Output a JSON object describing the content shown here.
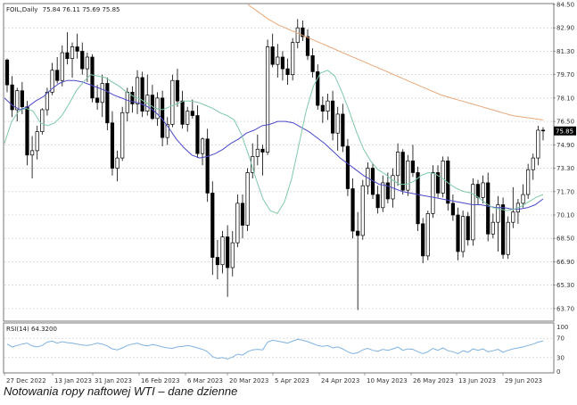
{
  "header": {
    "symbol": "FOIL,Daily",
    "ohlc": "75.84 76.11 75.69 75.85"
  },
  "caption": "Notowania ropy naftowej WTI – dane dzienne",
  "rsi_header": "RSI(14) 64.3200",
  "colors": {
    "candle": "#000000",
    "ma_fast": "#7fc9a8",
    "ma_mid": "#4a4ac8",
    "ma_slow": "#e8a878",
    "rsi": "#7fb3e0",
    "price_tag": "#000000"
  },
  "chart_data": [
    {
      "type": "candlestick",
      "symbol": "FOIL",
      "timeframe": "Daily",
      "last_price": 75.85,
      "price_tag": "75.85",
      "ylim": [
        62.9,
        84.5
      ],
      "y_ticks": [
        "84.50",
        "82.90",
        "81.30",
        "79.70",
        "78.10",
        "76.50",
        "74.90",
        "73.30",
        "71.70",
        "70.10",
        "68.50",
        "66.90",
        "65.30",
        "63.70"
      ],
      "x_ticks": [
        "27 Dec 2022",
        "13 Jan 2023",
        "31 Jan 2023",
        "16 Feb 2023",
        "6 Mar 2023",
        "20 Mar 2023",
        "5 Apr 2023",
        "24 Apr 2023",
        "10 May 2023",
        "26 May 2023",
        "13 Jun 2023",
        "29 Jun 2023"
      ],
      "grid": true,
      "candles": [
        [
          80.7,
          80.8,
          78.5,
          79.0
        ],
        [
          79.0,
          79.6,
          76.8,
          77.3
        ],
        [
          77.3,
          78.8,
          76.5,
          78.6
        ],
        [
          78.6,
          79.2,
          77.0,
          77.5
        ],
        [
          77.5,
          77.9,
          73.5,
          74.2
        ],
        [
          74.2,
          75.5,
          72.6,
          74.5
        ],
        [
          74.5,
          76.2,
          73.9,
          75.8
        ],
        [
          75.8,
          77.4,
          75.6,
          77.3
        ],
        [
          77.3,
          78.8,
          76.9,
          78.5
        ],
        [
          78.5,
          80.5,
          78.3,
          80.0
        ],
        [
          80.0,
          80.9,
          79.1,
          79.3
        ],
        [
          79.3,
          81.7,
          78.9,
          81.2
        ],
        [
          81.2,
          82.6,
          80.4,
          80.8
        ],
        [
          80.8,
          81.9,
          79.5,
          81.6
        ],
        [
          81.6,
          82.5,
          80.8,
          81.3
        ],
        [
          81.3,
          81.9,
          79.7,
          80.1
        ],
        [
          80.1,
          81.2,
          79.2,
          80.9
        ],
        [
          80.9,
          81.1,
          77.8,
          78.1
        ],
        [
          78.1,
          79.0,
          77.3,
          77.8
        ],
        [
          77.8,
          79.7,
          76.8,
          79.1
        ],
        [
          79.1,
          79.5,
          75.9,
          76.4
        ],
        [
          76.4,
          77.2,
          72.8,
          73.3
        ],
        [
          73.3,
          74.5,
          72.4,
          74.0
        ],
        [
          74.0,
          77.5,
          73.8,
          77.1
        ],
        [
          77.1,
          78.8,
          76.5,
          78.5
        ],
        [
          78.5,
          78.9,
          77.1,
          77.7
        ],
        [
          77.7,
          80.0,
          77.0,
          79.5
        ],
        [
          79.5,
          79.9,
          76.8,
          77.2
        ],
        [
          77.2,
          79.7,
          76.9,
          78.3
        ],
        [
          78.3,
          79.0,
          76.6,
          76.7
        ],
        [
          76.7,
          78.5,
          76.2,
          78.1
        ],
        [
          78.1,
          78.6,
          74.8,
          75.4
        ],
        [
          75.4,
          76.8,
          74.9,
          76.3
        ],
        [
          76.3,
          79.7,
          76.1,
          79.3
        ],
        [
          79.3,
          80.1,
          77.5,
          77.9
        ],
        [
          77.9,
          78.6,
          76.0,
          76.3
        ],
        [
          76.3,
          77.5,
          75.8,
          77.2
        ],
        [
          77.2,
          78.0,
          76.7,
          76.9
        ],
        [
          76.9,
          77.6,
          74.0,
          74.3
        ],
        [
          74.3,
          75.4,
          73.5,
          75.3
        ],
        [
          75.3,
          76.0,
          71.0,
          71.6
        ],
        [
          71.6,
          72.4,
          66.0,
          67.2
        ],
        [
          67.2,
          68.4,
          65.7,
          66.7
        ],
        [
          66.7,
          69.0,
          66.1,
          68.6
        ],
        [
          68.6,
          69.4,
          64.5,
          66.5
        ],
        [
          66.5,
          69.0,
          65.9,
          68.2
        ],
        [
          68.2,
          71.5,
          67.9,
          70.9
        ],
        [
          70.9,
          71.5,
          68.5,
          69.4
        ],
        [
          69.4,
          73.3,
          69.0,
          73.0
        ],
        [
          73.0,
          75.0,
          72.6,
          74.1
        ],
        [
          74.1,
          75.6,
          73.5,
          74.6
        ],
        [
          74.6,
          74.9,
          72.8,
          74.4
        ],
        [
          74.4,
          82.1,
          74.2,
          81.6
        ],
        [
          81.6,
          82.5,
          80.2,
          80.4
        ],
        [
          80.4,
          81.8,
          79.5,
          80.9
        ],
        [
          80.9,
          81.3,
          79.3,
          80.1
        ],
        [
          80.1,
          80.8,
          79.0,
          79.7
        ],
        [
          79.7,
          82.2,
          79.3,
          81.9
        ],
        [
          81.9,
          83.5,
          81.5,
          82.9
        ],
        [
          82.9,
          83.4,
          82.0,
          82.3
        ],
        [
          82.3,
          82.8,
          80.7,
          81.0
        ],
        [
          81.0,
          81.5,
          79.5,
          79.9
        ],
        [
          79.9,
          80.4,
          77.3,
          77.6
        ],
        [
          77.6,
          78.2,
          76.4,
          77.2
        ],
        [
          77.2,
          78.4,
          76.6,
          77.9
        ],
        [
          77.9,
          78.6,
          75.2,
          75.7
        ],
        [
          75.7,
          77.5,
          74.5,
          77.0
        ],
        [
          77.0,
          77.7,
          74.4,
          74.8
        ],
        [
          74.8,
          75.3,
          71.4,
          71.9
        ],
        [
          71.9,
          72.6,
          68.5,
          69.0
        ],
        [
          69.0,
          70.3,
          63.6,
          68.7
        ],
        [
          68.7,
          72.5,
          68.4,
          72.1
        ],
        [
          72.1,
          73.7,
          71.5,
          73.3
        ],
        [
          73.3,
          73.6,
          71.2,
          71.5
        ],
        [
          71.5,
          72.1,
          70.2,
          70.6
        ],
        [
          70.6,
          72.8,
          70.3,
          72.3
        ],
        [
          72.3,
          73.0,
          70.9,
          71.2
        ],
        [
          71.2,
          73.3,
          70.6,
          72.8
        ],
        [
          72.8,
          75.0,
          72.1,
          74.4
        ],
        [
          74.4,
          74.6,
          71.5,
          71.8
        ],
        [
          71.8,
          74.2,
          71.4,
          73.8
        ],
        [
          73.8,
          74.9,
          72.7,
          73.0
        ],
        [
          73.0,
          73.4,
          69.0,
          69.5
        ],
        [
          69.5,
          69.9,
          66.8,
          67.3
        ],
        [
          67.3,
          70.4,
          67.0,
          70.2
        ],
        [
          70.2,
          73.5,
          69.9,
          73.0
        ],
        [
          73.0,
          73.5,
          71.3,
          71.6
        ],
        [
          71.6,
          74.1,
          71.3,
          73.8
        ],
        [
          73.8,
          74.1,
          70.4,
          70.9
        ],
        [
          70.9,
          71.5,
          69.7,
          70.1
        ],
        [
          70.1,
          70.6,
          67.0,
          67.6
        ],
        [
          67.6,
          70.4,
          67.2,
          70.0
        ],
        [
          70.0,
          70.3,
          68.0,
          68.4
        ],
        [
          68.4,
          72.6,
          68.0,
          72.2
        ],
        [
          72.2,
          72.5,
          70.8,
          71.3
        ],
        [
          71.3,
          72.8,
          70.9,
          72.3
        ],
        [
          72.3,
          73.0,
          68.3,
          68.8
        ],
        [
          68.8,
          70.2,
          68.5,
          69.6
        ],
        [
          69.6,
          71.4,
          67.6,
          70.8
        ],
        [
          70.8,
          71.3,
          67.1,
          67.4
        ],
        [
          67.4,
          70.0,
          67.1,
          69.6
        ],
        [
          69.6,
          72.0,
          69.2,
          70.3
        ],
        [
          70.3,
          71.2,
          69.5,
          70.9
        ],
        [
          70.9,
          72.2,
          70.6,
          71.5
        ],
        [
          71.5,
          73.6,
          71.2,
          73.2
        ],
        [
          73.2,
          74.3,
          72.5,
          74.0
        ],
        [
          74.0,
          76.2,
          73.5,
          75.9
        ],
        [
          75.9,
          76.1,
          75.2,
          75.85
        ]
      ],
      "ma_fast": [
        75.0,
        76.5,
        77.2,
        77.4,
        77.2,
        76.4,
        76.2,
        76.4,
        76.9,
        77.7,
        78.6,
        79.2,
        79.7,
        79.6,
        79.5,
        79.2,
        78.9,
        78.5,
        78.2,
        78.0,
        77.7,
        77.4,
        77.3,
        77.5,
        77.7,
        77.9,
        77.9,
        77.8,
        77.6,
        77.4,
        77.1,
        76.9,
        76.6,
        75.6,
        74.2,
        72.6,
        71.2,
        70.4,
        70.2,
        71.0,
        72.6,
        74.9,
        77.2,
        78.9,
        79.8,
        80.0,
        79.6,
        78.5,
        77.2,
        75.8,
        74.6,
        73.8,
        73.2,
        72.9,
        72.5,
        72.2,
        72.2,
        72.4,
        72.8,
        73.0,
        72.9,
        72.6,
        72.2,
        71.9,
        71.7,
        71.6,
        71.3,
        70.9,
        70.6,
        70.5,
        70.4,
        70.5,
        70.7,
        71.0,
        71.3,
        71.5
      ],
      "ma_mid": [
        78.1,
        77.6,
        77.3,
        77.5,
        77.9,
        78.2,
        78.7,
        79.1,
        79.3,
        79.3,
        79.2,
        79.0,
        78.8,
        78.6,
        78.3,
        78.1,
        77.9,
        77.8,
        77.6,
        77.3,
        76.8,
        76.1,
        75.3,
        74.7,
        74.2,
        74.0,
        74.1,
        74.3,
        74.6,
        75.0,
        75.3,
        75.7,
        75.9,
        76.2,
        76.3,
        76.5,
        76.5,
        76.4,
        76.1,
        75.8,
        75.4,
        75.0,
        74.5,
        74.0,
        73.6,
        73.2,
        72.8,
        72.5,
        72.2,
        72.1,
        71.9,
        71.7,
        71.6,
        71.5,
        71.4,
        71.3,
        71.2,
        71.1,
        71.0,
        70.9,
        70.8,
        70.8,
        70.7,
        70.6,
        70.6,
        70.5,
        70.5,
        70.6,
        70.8,
        71.2
      ],
      "ma_slow": [
        84.5,
        84.0,
        83.5,
        83.1,
        82.8,
        82.5,
        82.2,
        81.9,
        81.6,
        81.3,
        81.0,
        80.7,
        80.4,
        80.1,
        79.8,
        79.5,
        79.2,
        78.9,
        78.6,
        78.3,
        78.1,
        77.9,
        77.7,
        77.5,
        77.3,
        77.1,
        76.9,
        76.8,
        76.7,
        76.6
      ],
      "rsi": {
        "label": "RSI(14)",
        "value": 64.32,
        "ylim": [
          0,
          100
        ],
        "y_ticks": [
          "100",
          "70",
          "30",
          "0"
        ],
        "values": [
          58,
          52,
          55,
          58,
          60,
          54,
          52,
          55,
          62,
          64,
          60,
          63,
          61,
          60,
          58,
          56,
          55,
          57,
          60,
          58,
          54,
          48,
          46,
          50,
          55,
          58,
          60,
          56,
          54,
          57,
          55,
          52,
          50,
          49,
          52,
          53,
          55,
          53,
          50,
          47,
          42,
          32,
          28,
          30,
          27,
          31,
          37,
          35,
          42,
          46,
          47,
          46,
          62,
          66,
          64,
          62,
          60,
          64,
          68,
          66,
          63,
          59,
          55,
          53,
          55,
          50,
          52,
          48,
          42,
          38,
          40,
          46,
          49,
          45,
          43,
          47,
          45,
          48,
          52,
          45,
          48,
          47,
          42,
          38,
          42,
          49,
          45,
          50,
          44,
          42,
          38,
          44,
          41,
          48,
          45,
          48,
          42,
          44,
          47,
          41,
          45,
          48,
          50,
          52,
          55,
          58,
          62,
          64.32
        ]
      }
    }
  ]
}
